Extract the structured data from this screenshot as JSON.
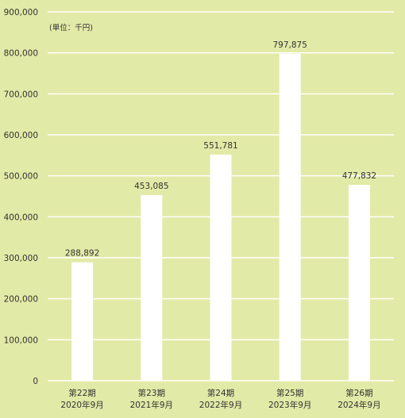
{
  "chart_data": {
    "type": "bar",
    "unit_label": "(単位：千円)",
    "categories": [
      [
        "第22期",
        "2020年9月"
      ],
      [
        "第23期",
        "2021年9月"
      ],
      [
        "第24期",
        "2022年9月"
      ],
      [
        "第25期",
        "2023年9月"
      ],
      [
        "第26期",
        "2024年9月"
      ]
    ],
    "values": [
      288892,
      453085,
      551781,
      797875,
      477832
    ],
    "value_labels": [
      "288,892",
      "453,085",
      "551,781",
      "797,875",
      "477,832"
    ],
    "ylim": [
      0,
      900000
    ],
    "yticks": [
      0,
      100000,
      200000,
      300000,
      400000,
      500000,
      600000,
      700000,
      800000,
      900000
    ],
    "ytick_labels": [
      "0",
      "100,000",
      "200,000",
      "300,000",
      "400,000",
      "500,000",
      "600,000",
      "700,000",
      "800,000",
      "900,000"
    ],
    "grid": true,
    "colors": {
      "background": "#e2eaa7",
      "bar": "#ffffff",
      "grid": "#ffffff",
      "text": "#333333"
    }
  }
}
